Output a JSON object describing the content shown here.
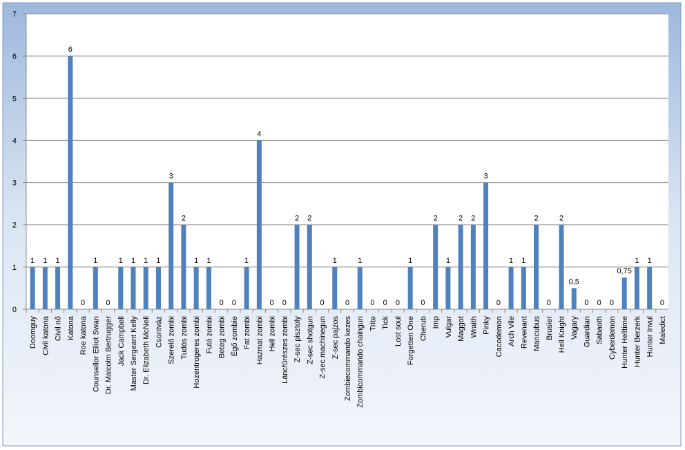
{
  "chart_data": {
    "type": "bar",
    "categories": [
      "Doomguy",
      "Civil katona",
      "Civil nő",
      "Katona",
      "Roe katona",
      "Counsellor Elliot Swan",
      "Dr. Malcolm Bertrugger",
      "Jack Campbell",
      "Master Sergeant Kelly",
      "Dr. Elizabeth McNeil",
      "Csontváz",
      "Szerelő zombi",
      "Tudós zombi",
      "Hozentrogeres zombi",
      "Futó zombi",
      "Beteg zombi",
      "Égő zombie",
      "Fat zombi",
      "Hazmat zombi",
      "Hell zombi",
      "Láncfűrészes zombi",
      "Z-sec pisztoly",
      "Z-sec shotgun",
      "Z-sec machinegun",
      "Z-sec pajzos",
      "Zombiecommando kezes",
      "Zombicommando chaingun",
      "Trite",
      "Tick",
      "Lost soul",
      "Forgetten One",
      "Cherub",
      "Imp",
      "Vulgar",
      "Maggot",
      "Wraith",
      "Pinky",
      "Cacodemon",
      "Arch Vile",
      "Revenant",
      "Mancubus",
      "Brusier",
      "Hell Knight",
      "Vagary",
      "Guardian",
      "Sabaoth",
      "Cyberdemon",
      "Hunter Helltime",
      "Hunter Berzerk",
      "Hunter Invul",
      "Maledict"
    ],
    "values": [
      1,
      1,
      1,
      6,
      0,
      1,
      0,
      1,
      1,
      1,
      1,
      3,
      2,
      1,
      1,
      0,
      0,
      1,
      4,
      0,
      0,
      2,
      2,
      0,
      1,
      0,
      1,
      0,
      0,
      0,
      1,
      0,
      2,
      1,
      2,
      2,
      3,
      0,
      1,
      1,
      2,
      0,
      2,
      0.5,
      0,
      0,
      0,
      0.75,
      1,
      1,
      0
    ],
    "value_labels": [
      "1",
      "1",
      "1",
      "6",
      "0",
      "1",
      "0",
      "1",
      "1",
      "1",
      "1",
      "3",
      "2",
      "1",
      "1",
      "0",
      "0",
      "1",
      "4",
      "0",
      "0",
      "2",
      "2",
      "0",
      "1",
      "0",
      "1",
      "0",
      "0",
      "0",
      "1",
      "0",
      "2",
      "1",
      "2",
      "2",
      "3",
      "0",
      "1",
      "1",
      "2",
      "0",
      "2",
      "0,5",
      "0",
      "0",
      "0",
      "0,75",
      "1",
      "1",
      "0"
    ],
    "color": "#4f81bd",
    "ylim": [
      0,
      7
    ],
    "yticks": [
      0,
      1,
      2,
      3,
      4,
      5,
      6,
      7
    ],
    "grid": true
  }
}
